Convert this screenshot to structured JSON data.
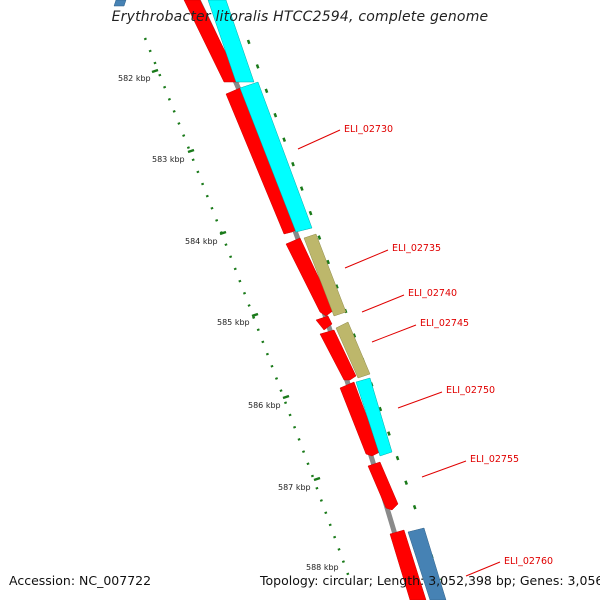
{
  "title": "Erythrobacter litoralis HTCC2594, complete genome",
  "footer": {
    "accession": "Accession: NC_007722",
    "summary": "Topology: circular; Length: 3,052,398 bp; Genes: 3,056"
  },
  "ticks": [
    "582 kbp",
    "583 kbp",
    "584 kbp",
    "585 kbp",
    "586 kbp",
    "587 kbp",
    "588 kbp"
  ],
  "gene_labels": [
    "ELI_02730",
    "ELI_02735",
    "ELI_02740",
    "ELI_02745",
    "ELI_02750",
    "ELI_02755",
    "ELI_02760"
  ],
  "colors": {
    "cds_strand": "#ff0000",
    "cyan_track": "#00ffff",
    "olive_track": "#bdb76b",
    "blue_track": "#4682b4",
    "backbone": "#888888",
    "tick_dots": "#006400",
    "label": "#e00000"
  }
}
